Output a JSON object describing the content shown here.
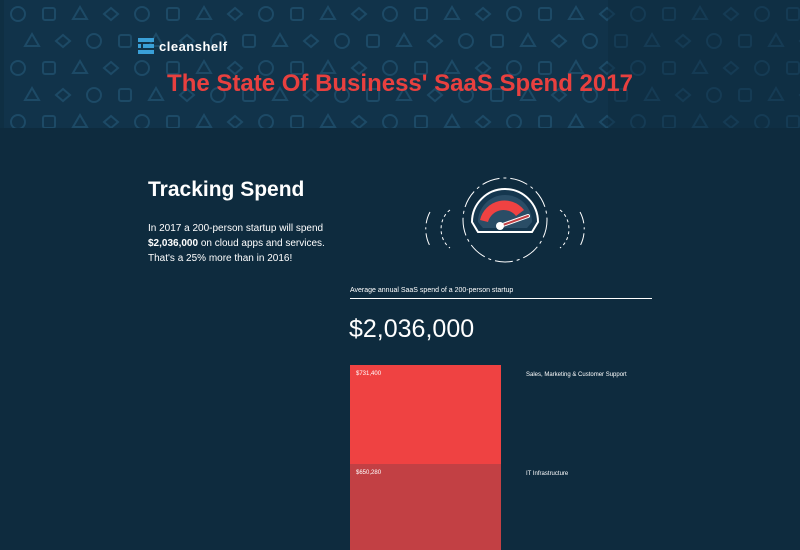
{
  "header": {
    "logo_text": "cleanshelf",
    "title": "The State Of Business' SaaS Spend 2017"
  },
  "tracking": {
    "heading": "Tracking Spend",
    "intro_line1": "In 2017 a 200-person startup will spend",
    "intro_amount": "$2,036,000",
    "intro_line2": " on cloud apps and services.",
    "intro_line3": "That's a 25% more than in 2016!"
  },
  "spend": {
    "average_label": "Average annual SaaS spend of a 200-person startup",
    "total": "$2,036,000",
    "categories": [
      {
        "amount": "$731,400",
        "label": "Sales, Marketing & Customer Support",
        "color": "#ef4242"
      },
      {
        "amount": "$650,280",
        "label": "IT Infrastructure",
        "color": "#c24044"
      }
    ]
  },
  "colors": {
    "background": "#0e2b3e",
    "banner": "#11334a",
    "accent": "#e8403f"
  },
  "icons": {
    "logo": "cleanshelf-logo-icon",
    "gauge": "speedometer-gauge-icon",
    "pattern": "saas-app-icons-pattern"
  }
}
